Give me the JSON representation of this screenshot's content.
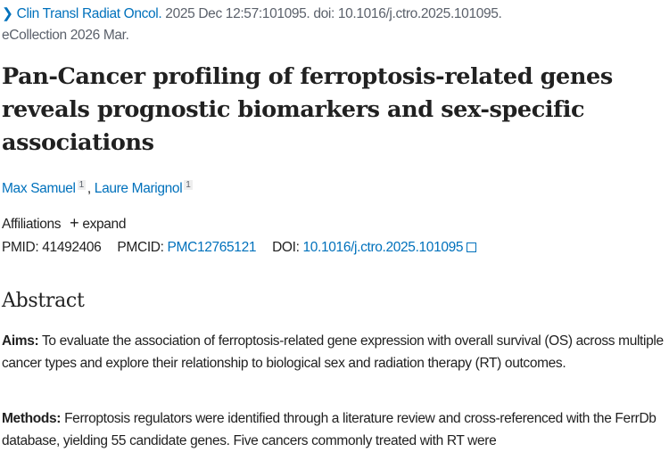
{
  "citation": {
    "journal": "Clin Transl Radiat Oncol.",
    "details": "2025 Dec 12:57:101095. doi: 10.1016/j.ctro.2025.101095.",
    "ecollection": "eCollection 2026 Mar."
  },
  "title": "Pan-Cancer profiling of ferroptosis-related genes reveals prognostic biomarkers and sex-specific associations",
  "authors": [
    {
      "name": "Max Samuel",
      "affil": "1"
    },
    {
      "name": "Laure Marignol",
      "affil": "1"
    }
  ],
  "affiliations": {
    "label": "Affiliations",
    "expand": "expand"
  },
  "ids": {
    "pmid_label": "PMID:",
    "pmid": "41492406",
    "pmcid_label": "PMCID:",
    "pmcid": "PMC12765121",
    "doi_label": "DOI:",
    "doi": "10.1016/j.ctro.2025.101095"
  },
  "abstract": {
    "heading": "Abstract",
    "aims_label": "Aims:",
    "aims": "To evaluate the association of ferroptosis-related gene expression with overall survival (OS) across multiple cancer types and explore their relationship to biological sex and radiation therapy (RT) outcomes.",
    "methods_label": "Methods:",
    "methods": "Ferroptosis regulators were identified through a literature review and cross-referenced with the FerrDb database, yielding 55 candidate genes. Five cancers commonly treated with RT were"
  },
  "colors": {
    "link": "#0071bc",
    "text": "#212121",
    "muted": "#5b616b"
  }
}
